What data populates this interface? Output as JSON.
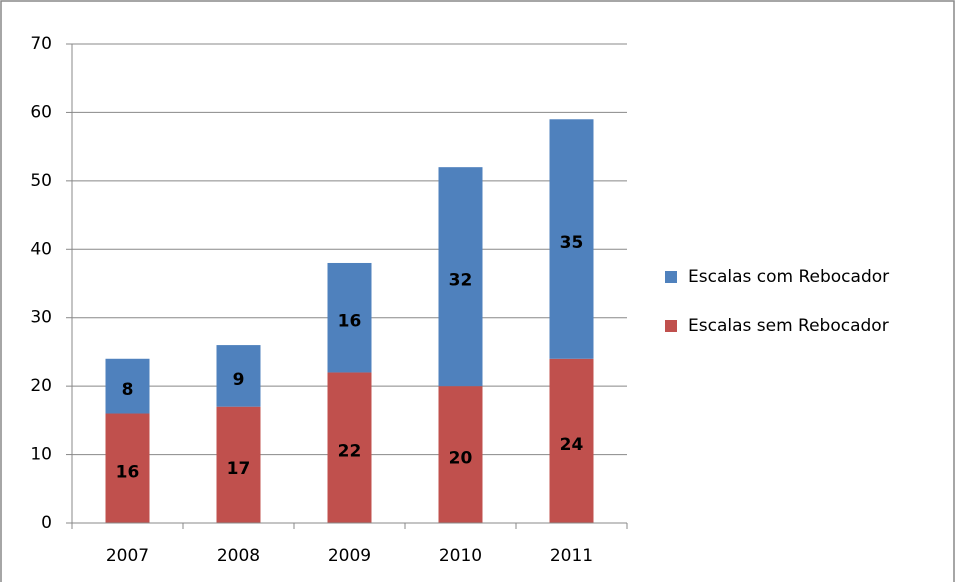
{
  "chart_data": {
    "type": "stacked_bar",
    "categories": [
      "2007",
      "2008",
      "2009",
      "2010",
      "2011"
    ],
    "series": [
      {
        "name": "Escalas sem Rebocador",
        "color": "#c0504d",
        "values": [
          16,
          17,
          22,
          20,
          24
        ]
      },
      {
        "name": "Escalas com Rebocador",
        "color": "#4f81bd",
        "values": [
          8,
          9,
          16,
          32,
          35
        ]
      }
    ],
    "ylim": [
      0,
      70
    ],
    "yticks": [
      0,
      10,
      20,
      30,
      40,
      50,
      60,
      70
    ],
    "grid": true,
    "legend": "right"
  }
}
